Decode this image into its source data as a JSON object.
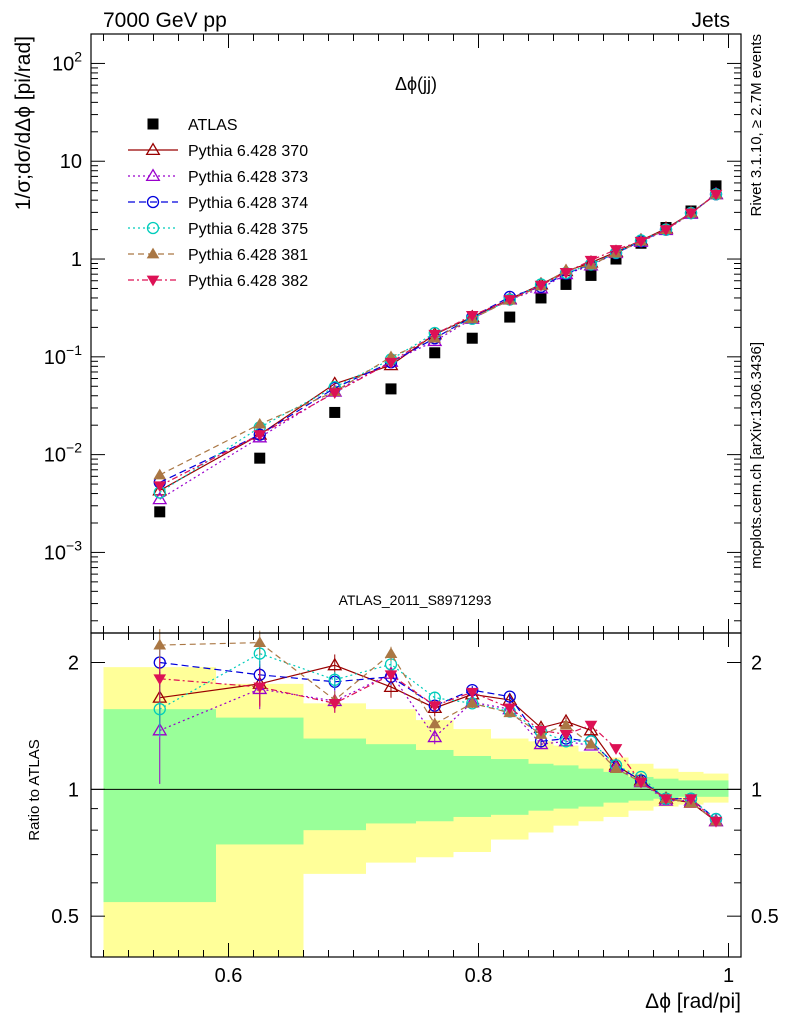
{
  "header": {
    "left": "7000 GeV pp",
    "right": "Jets"
  },
  "side_text": {
    "upper": "Rivet 3.1.10, ≥ 2.7M events",
    "lower": "mcplots.cern.ch [arXiv:1306.3436]"
  },
  "plot_label": "Δϕ(jj)",
  "watermark": "ATLAS_2011_S8971293",
  "colors": {
    "yellow_band": "#ffff99",
    "green_band": "#99ff99"
  },
  "chart_data": [
    {
      "type": "line",
      "panel": "main",
      "ylabel": "1/σ;dσ/dΔϕ [pi/rad]",
      "xlim": [
        0.49,
        1.01
      ],
      "ylim": [
        0.00015,
        200
      ],
      "yscale": "log",
      "yticks": [
        {
          "v": 0.001,
          "b": "10",
          "e": "−3"
        },
        {
          "v": 0.01,
          "b": "10",
          "e": "−2"
        },
        {
          "v": 0.1,
          "b": "10",
          "e": "−1"
        },
        {
          "v": 1,
          "b": "1",
          "e": ""
        },
        {
          "v": 10,
          "b": "10",
          "e": ""
        },
        {
          "v": 100,
          "b": "10",
          "e": "2"
        }
      ],
      "x": [
        0.545,
        0.625,
        0.685,
        0.73,
        0.765,
        0.795,
        0.825,
        0.85,
        0.87,
        0.89,
        0.91,
        0.93,
        0.95,
        0.97,
        0.99
      ],
      "legend_position": "top-left",
      "series": [
        {
          "name": "ATLAS",
          "color": "#000000",
          "marker": "square",
          "dash": "",
          "line": false,
          "values": [
            0.0026,
            0.0092,
            0.027,
            0.047,
            0.11,
            0.155,
            0.255,
            0.4,
            0.55,
            0.68,
            1.0,
            1.45,
            2.1,
            3.1,
            5.6
          ]
        },
        {
          "name": "Pythia 6.428 370",
          "color": "#990000",
          "marker": "triangle-open",
          "dash": "",
          "line": true,
          "values": [
            0.0043,
            0.016,
            0.053,
            0.082,
            0.17,
            0.255,
            0.39,
            0.55,
            0.75,
            0.92,
            1.18,
            1.55,
            2.05,
            2.95,
            4.6
          ]
        },
        {
          "name": "Pythia 6.428 373",
          "color": "#9900cc",
          "marker": "triangle-open",
          "dash": "2,3",
          "line": true,
          "values": [
            0.0035,
            0.015,
            0.044,
            0.089,
            0.145,
            0.245,
            0.385,
            0.5,
            0.7,
            0.86,
            1.15,
            1.5,
            1.98,
            2.9,
            4.6
          ]
        },
        {
          "name": "Pythia 6.428 374",
          "color": "#0000dd",
          "marker": "circle-open",
          "dash": "7,4",
          "line": true,
          "values": [
            0.0052,
            0.016,
            0.048,
            0.088,
            0.155,
            0.255,
            0.41,
            0.52,
            0.71,
            0.88,
            1.15,
            1.52,
            2.0,
            2.95,
            4.6
          ]
        },
        {
          "name": "Pythia 6.428 375",
          "color": "#00ccbb",
          "marker": "circle-open",
          "dash": "2,3",
          "line": true,
          "values": [
            0.0041,
            0.019,
            0.049,
            0.094,
            0.175,
            0.245,
            0.385,
            0.55,
            0.72,
            0.88,
            1.16,
            1.55,
            2.0,
            2.95,
            4.6
          ]
        },
        {
          "name": "Pythia 6.428 381",
          "color": "#aa7744",
          "marker": "triangle",
          "dash": "6,4",
          "line": true,
          "values": [
            0.0062,
            0.0205,
            0.044,
            0.1,
            0.155,
            0.245,
            0.38,
            0.53,
            0.77,
            0.87,
            1.15,
            1.52,
            2.0,
            2.95,
            4.6
          ]
        },
        {
          "name": "Pythia 6.428 382",
          "color": "#dd1155",
          "marker": "triangle-down",
          "dash": "6,3,2,3",
          "line": true,
          "values": [
            0.0048,
            0.016,
            0.043,
            0.088,
            0.17,
            0.265,
            0.385,
            0.54,
            0.73,
            0.97,
            1.25,
            1.52,
            2.0,
            2.95,
            4.6
          ]
        }
      ]
    },
    {
      "type": "line",
      "panel": "ratio",
      "xlabel": "Δϕ [rad/pi]",
      "ylabel": "Ratio to ATLAS",
      "xlim": [
        0.49,
        1.01
      ],
      "ylim": [
        0.4,
        2.35
      ],
      "yscale": "log",
      "yticks": [
        0.5,
        1,
        2
      ],
      "xticks": [
        0.6,
        0.8,
        1
      ],
      "bands": [
        {
          "x0": 0.5,
          "x1": 0.59,
          "yellow": [
            0.4,
            1.95
          ],
          "green": [
            0.54,
            1.55
          ]
        },
        {
          "x0": 0.59,
          "x1": 0.66,
          "yellow": [
            0.4,
            1.78
          ],
          "green": [
            0.74,
            1.48
          ]
        },
        {
          "x0": 0.66,
          "x1": 0.71,
          "yellow": [
            0.63,
            1.6
          ],
          "green": [
            0.8,
            1.32
          ]
        },
        {
          "x0": 0.71,
          "x1": 0.75,
          "yellow": [
            0.67,
            1.55
          ],
          "green": [
            0.83,
            1.28
          ]
        },
        {
          "x0": 0.75,
          "x1": 0.78,
          "yellow": [
            0.69,
            1.46
          ],
          "green": [
            0.84,
            1.24
          ]
        },
        {
          "x0": 0.78,
          "x1": 0.81,
          "yellow": [
            0.71,
            1.39
          ],
          "green": [
            0.86,
            1.2
          ]
        },
        {
          "x0": 0.81,
          "x1": 0.84,
          "yellow": [
            0.76,
            1.32
          ],
          "green": [
            0.87,
            1.18
          ]
        },
        {
          "x0": 0.84,
          "x1": 0.86,
          "yellow": [
            0.79,
            1.3
          ],
          "green": [
            0.89,
            1.15
          ]
        },
        {
          "x0": 0.86,
          "x1": 0.88,
          "yellow": [
            0.82,
            1.27
          ],
          "green": [
            0.9,
            1.14
          ]
        },
        {
          "x0": 0.88,
          "x1": 0.9,
          "yellow": [
            0.84,
            1.23
          ],
          "green": [
            0.91,
            1.12
          ]
        },
        {
          "x0": 0.9,
          "x1": 0.92,
          "yellow": [
            0.86,
            1.19
          ],
          "green": [
            0.93,
            1.1
          ]
        },
        {
          "x0": 0.92,
          "x1": 0.94,
          "yellow": [
            0.89,
            1.15
          ],
          "green": [
            0.94,
            1.07
          ]
        },
        {
          "x0": 0.94,
          "x1": 0.96,
          "yellow": [
            0.91,
            1.12
          ],
          "green": [
            0.95,
            1.06
          ]
        },
        {
          "x0": 0.96,
          "x1": 0.98,
          "yellow": [
            0.92,
            1.1
          ],
          "green": [
            0.96,
            1.05
          ]
        },
        {
          "x0": 0.98,
          "x1": 1.0,
          "yellow": [
            0.93,
            1.09
          ],
          "green": [
            0.96,
            1.05
          ]
        }
      ],
      "series": [
        {
          "name": "Pythia 6.428 370",
          "values": [
            1.65,
            1.78,
            1.97,
            1.75,
            1.56,
            1.68,
            1.63,
            1.4,
            1.45,
            1.38,
            1.14,
            1.05,
            0.95,
            0.93,
            0.84
          ],
          "err": [
            0.25,
            0.2,
            0.12,
            0.1,
            0.07,
            0.05,
            0.04,
            0.03,
            0.03,
            0.03,
            0.02,
            0.02,
            0.02,
            0.02,
            0.02
          ]
        },
        {
          "name": "Pythia 6.428 373",
          "values": [
            1.38,
            1.73,
            1.62,
            1.88,
            1.33,
            1.61,
            1.55,
            1.28,
            1.3,
            1.27,
            1.13,
            1.04,
            0.94,
            0.94,
            0.84
          ],
          "err": [
            0.35,
            0.18,
            0.1,
            0.09,
            0.05,
            0.04,
            0.03,
            0.03,
            0.03,
            0.02,
            0.02,
            0.02,
            0.02,
            0.02,
            0.02
          ]
        },
        {
          "name": "Pythia 6.428 374",
          "values": [
            2.0,
            1.87,
            1.8,
            1.85,
            1.58,
            1.72,
            1.66,
            1.3,
            1.32,
            1.3,
            1.14,
            1.05,
            0.95,
            0.95,
            0.85
          ],
          "err": [
            0.25,
            0.15,
            0.08,
            0.08,
            0.05,
            0.04,
            0.03,
            0.03,
            0.03,
            0.02,
            0.02,
            0.02,
            0.02,
            0.02,
            0.02
          ]
        },
        {
          "name": "Pythia 6.428 375",
          "values": [
            1.55,
            2.1,
            1.82,
            1.98,
            1.65,
            1.6,
            1.53,
            1.37,
            1.3,
            1.3,
            1.14,
            1.07,
            0.95,
            0.95,
            0.85
          ],
          "err": [
            0.22,
            0.15,
            0.08,
            0.08,
            0.05,
            0.04,
            0.03,
            0.03,
            0.03,
            0.02,
            0.02,
            0.02,
            0.02,
            0.02,
            0.02
          ]
        },
        {
          "name": "Pythia 6.428 381",
          "values": [
            2.2,
            2.23,
            1.63,
            2.1,
            1.43,
            1.6,
            1.52,
            1.35,
            1.42,
            1.28,
            1.12,
            1.04,
            0.95,
            0.93,
            0.84
          ],
          "err": [
            0.2,
            0.15,
            0.08,
            0.08,
            0.05,
            0.04,
            0.03,
            0.03,
            0.03,
            0.02,
            0.02,
            0.02,
            0.02,
            0.02,
            0.02
          ]
        },
        {
          "name": "Pythia 6.428 382",
          "values": [
            1.83,
            1.75,
            1.6,
            1.87,
            1.58,
            1.7,
            1.56,
            1.38,
            1.35,
            1.42,
            1.25,
            1.04,
            0.95,
            0.95,
            0.84
          ],
          "err": [
            0.22,
            0.18,
            0.08,
            0.08,
            0.05,
            0.04,
            0.03,
            0.03,
            0.03,
            0.02,
            0.02,
            0.02,
            0.02,
            0.02,
            0.02
          ]
        }
      ]
    }
  ]
}
